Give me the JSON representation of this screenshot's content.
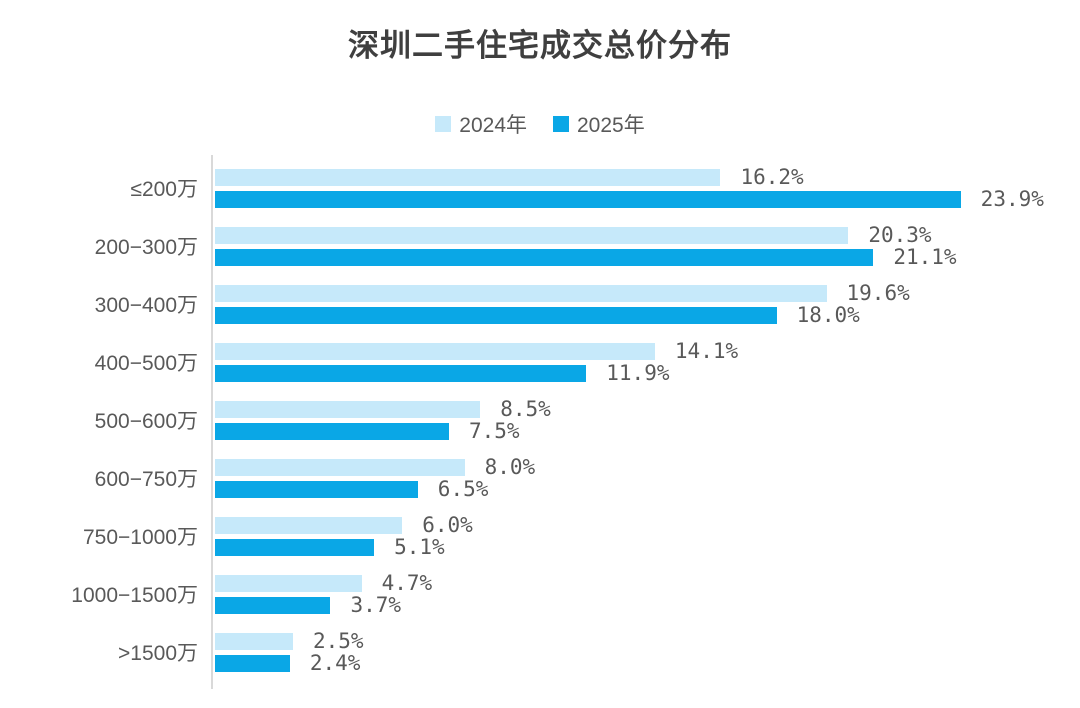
{
  "title": "深圳二手住宅成交总价分布",
  "legend": [
    {
      "label": "2024年",
      "color": "#c6e9fa"
    },
    {
      "label": "2025年",
      "color": "#0aa7e6"
    }
  ],
  "chart_data": {
    "type": "bar",
    "orientation": "horizontal",
    "title": "深圳二手住宅成交总价分布",
    "xlabel": "",
    "ylabel": "",
    "xlim": [
      0,
      25
    ],
    "grid": false,
    "legend_position": "top",
    "categories": [
      "≤200万",
      "200−300万",
      "300−400万",
      "400−500万",
      "500−600万",
      "600−750万",
      "750−1000万",
      "1000−1500万",
      ">1500万"
    ],
    "series": [
      {
        "name": "2024年",
        "color": "#c6e9fa",
        "values": [
          16.2,
          20.3,
          19.6,
          14.1,
          8.5,
          8.0,
          6.0,
          4.7,
          2.5
        ],
        "labels": [
          "16.2%",
          "20.3%",
          "19.6%",
          "14.1%",
          "8.5%",
          "8.0%",
          "6.0%",
          "4.7%",
          "2.5%"
        ]
      },
      {
        "name": "2025年",
        "color": "#0aa7e6",
        "values": [
          23.9,
          21.1,
          18.0,
          11.9,
          7.5,
          6.5,
          5.1,
          3.7,
          2.4
        ],
        "labels": [
          "23.9%",
          "21.1%",
          "18.0%",
          "11.9%",
          "7.5%",
          "6.5%",
          "5.1%",
          "3.7%",
          "2.4%"
        ]
      }
    ]
  }
}
